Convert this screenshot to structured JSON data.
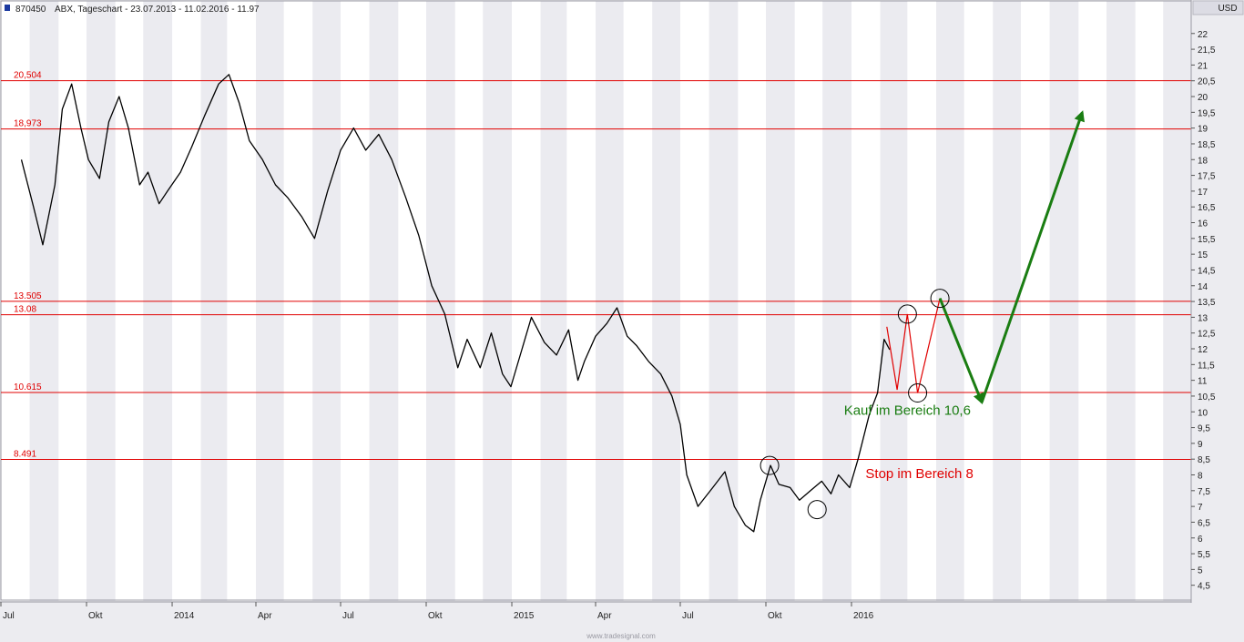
{
  "header": {
    "symbol": "870450",
    "title": "ABX, Tageschart - 23.07.2013 - 11.02.2016 - 11.97"
  },
  "currency": "USD",
  "footer_text": "www.tradesignal.com",
  "colors": {
    "level_line": "#e00000",
    "buy_arrow": "#1a7d12",
    "projection": "#e00000",
    "price": "#000000",
    "band": "#ebebf0"
  },
  "chart_data": {
    "type": "line",
    "title": "ABX, Tageschart - 23.07.2013 - 11.02.2016 - 11.97",
    "xlabel": "",
    "ylabel": "USD",
    "xlim": [
      "2013-07-01",
      "2016-12-31"
    ],
    "ylim": [
      4.0,
      22.6
    ],
    "x_ticks": [
      {
        "date": "2013-07-01",
        "label": "Jul"
      },
      {
        "date": "2013-10-01",
        "label": "Okt"
      },
      {
        "date": "2014-01-01",
        "label": "2014"
      },
      {
        "date": "2014-04-01",
        "label": "Apr"
      },
      {
        "date": "2014-07-01",
        "label": "Jul"
      },
      {
        "date": "2014-10-01",
        "label": "Okt"
      },
      {
        "date": "2015-01-01",
        "label": "2015"
      },
      {
        "date": "2015-04-01",
        "label": "Apr"
      },
      {
        "date": "2015-07-01",
        "label": "Jul"
      },
      {
        "date": "2015-10-01",
        "label": "Okt"
      },
      {
        "date": "2016-01-01",
        "label": "2016"
      }
    ],
    "y_ticks": [
      "4,5",
      "5",
      "5,5",
      "6",
      "6,5",
      "7",
      "7,5",
      "8",
      "8,5",
      "9",
      "9,5",
      "10",
      "10,5",
      "11",
      "11,5",
      "12",
      "12,5",
      "13",
      "13,5",
      "14",
      "14,5",
      "15",
      "15,5",
      "16",
      "16,5",
      "17",
      "17,5",
      "18",
      "18,5",
      "19",
      "19,5",
      "20",
      "20,5",
      "21",
      "21,5",
      "22"
    ],
    "series": [
      {
        "values": [
          [
            "2013-07-23",
            18.0
          ],
          [
            "2013-08-05",
            16.5
          ],
          [
            "2013-08-15",
            15.3
          ],
          [
            "2013-08-28",
            17.2
          ],
          [
            "2013-09-05",
            19.6
          ],
          [
            "2013-09-15",
            20.4
          ],
          [
            "2013-09-25",
            19.0
          ],
          [
            "2013-10-03",
            18.0
          ],
          [
            "2013-10-15",
            17.4
          ],
          [
            "2013-10-25",
            19.2
          ],
          [
            "2013-11-05",
            20.0
          ],
          [
            "2013-11-15",
            19.0
          ],
          [
            "2013-11-27",
            17.2
          ],
          [
            "2013-12-06",
            17.6
          ],
          [
            "2013-12-18",
            16.6
          ],
          [
            "2013-12-27",
            17.0
          ],
          [
            "2014-01-10",
            17.6
          ],
          [
            "2014-01-22",
            18.4
          ],
          [
            "2014-02-05",
            19.4
          ],
          [
            "2014-02-20",
            20.4
          ],
          [
            "2014-03-03",
            20.7
          ],
          [
            "2014-03-14",
            19.8
          ],
          [
            "2014-03-25",
            18.6
          ],
          [
            "2014-04-08",
            18.0
          ],
          [
            "2014-04-22",
            17.2
          ],
          [
            "2014-05-05",
            16.8
          ],
          [
            "2014-05-20",
            16.2
          ],
          [
            "2014-06-03",
            15.5
          ],
          [
            "2014-06-17",
            17.0
          ],
          [
            "2014-07-01",
            18.3
          ],
          [
            "2014-07-15",
            19.0
          ],
          [
            "2014-07-28",
            18.3
          ],
          [
            "2014-08-11",
            18.8
          ],
          [
            "2014-08-25",
            18.0
          ],
          [
            "2014-09-09",
            16.8
          ],
          [
            "2014-09-23",
            15.6
          ],
          [
            "2014-10-07",
            14.0
          ],
          [
            "2014-10-21",
            13.1
          ],
          [
            "2014-11-04",
            11.4
          ],
          [
            "2014-11-14",
            12.3
          ],
          [
            "2014-11-28",
            11.4
          ],
          [
            "2014-12-10",
            12.5
          ],
          [
            "2014-12-22",
            11.2
          ],
          [
            "2014-12-31",
            10.8
          ],
          [
            "2015-01-12",
            12.0
          ],
          [
            "2015-01-22",
            13.0
          ],
          [
            "2015-02-05",
            12.2
          ],
          [
            "2015-02-18",
            11.8
          ],
          [
            "2015-03-03",
            12.6
          ],
          [
            "2015-03-13",
            11.0
          ],
          [
            "2015-03-20",
            11.6
          ],
          [
            "2015-04-01",
            12.4
          ],
          [
            "2015-04-13",
            12.8
          ],
          [
            "2015-04-24",
            13.3
          ],
          [
            "2015-05-05",
            12.4
          ],
          [
            "2015-05-15",
            12.1
          ],
          [
            "2015-05-28",
            11.6
          ],
          [
            "2015-06-10",
            11.2
          ],
          [
            "2015-06-22",
            10.5
          ],
          [
            "2015-07-01",
            9.6
          ],
          [
            "2015-07-08",
            8.0
          ],
          [
            "2015-07-20",
            7.0
          ],
          [
            "2015-08-05",
            7.6
          ],
          [
            "2015-08-18",
            8.1
          ],
          [
            "2015-08-28",
            7.0
          ],
          [
            "2015-09-09",
            6.4
          ],
          [
            "2015-09-18",
            6.2
          ],
          [
            "2015-09-25",
            7.2
          ],
          [
            "2015-10-06",
            8.3
          ],
          [
            "2015-10-15",
            7.7
          ],
          [
            "2015-10-27",
            7.6
          ],
          [
            "2015-11-06",
            7.2
          ],
          [
            "2015-11-18",
            7.5
          ],
          [
            "2015-11-30",
            7.8
          ],
          [
            "2015-12-10",
            7.4
          ],
          [
            "2015-12-18",
            8.0
          ],
          [
            "2015-12-30",
            7.6
          ],
          [
            "2016-01-08",
            8.5
          ],
          [
            "2016-01-20",
            9.9
          ],
          [
            "2016-01-29",
            10.6
          ],
          [
            "2016-02-05",
            12.3
          ],
          [
            "2016-02-11",
            11.97
          ]
        ]
      }
    ],
    "levels": [
      {
        "value": 20.504,
        "label": "20,504"
      },
      {
        "value": 18.973,
        "label": "18,973"
      },
      {
        "value": 13.505,
        "label": "13.505"
      },
      {
        "value": 13.08,
        "label": "13.08"
      },
      {
        "value": 10.615,
        "label": "10.615"
      },
      {
        "value": 8.491,
        "label": "8.491"
      }
    ],
    "projection_path": [
      [
        "2016-02-08",
        12.7
      ],
      [
        "2016-02-19",
        10.7
      ],
      [
        "2016-03-01",
        13.1
      ],
      [
        "2016-03-12",
        10.6
      ],
      [
        "2016-04-05",
        13.6
      ]
    ],
    "buy_arrows": [
      {
        "from": [
          "2016-04-05",
          13.6
        ],
        "to": [
          "2016-05-20",
          10.3
        ]
      },
      {
        "from": [
          "2016-05-20",
          10.3
        ],
        "to": [
          "2016-09-05",
          19.5
        ]
      }
    ],
    "circles": [
      {
        "date": "2015-10-05",
        "value": 8.3
      },
      {
        "date": "2015-11-25",
        "value": 6.9
      },
      {
        "date": "2016-03-01",
        "value": 13.1
      },
      {
        "date": "2016-03-12",
        "value": 10.6
      },
      {
        "date": "2016-04-05",
        "value": 13.6
      }
    ],
    "annotations": [
      {
        "text": "Kauf im Bereich 10,6",
        "date": "2016-03-01",
        "value": 9.9,
        "color": "buy_arrow"
      },
      {
        "text": "Stop im Bereich 8",
        "date": "2016-03-14",
        "value": 7.9,
        "color": "projection"
      }
    ]
  }
}
